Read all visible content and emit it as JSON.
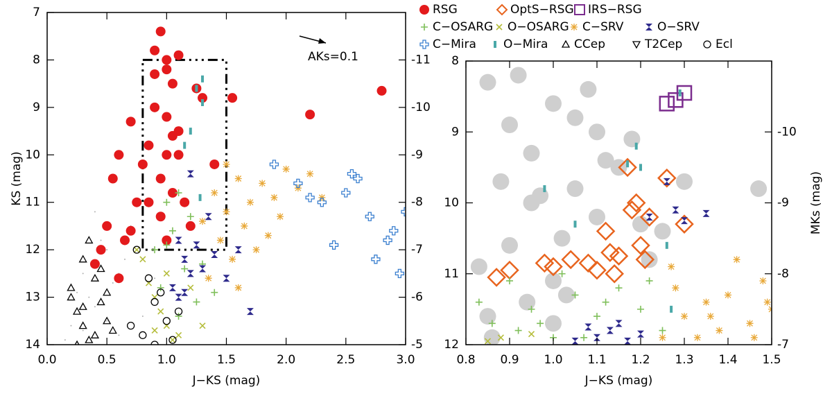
{
  "chart_data": [
    {
      "type": "scatter",
      "xlabel": "J−KS (mag)",
      "ylabel": "KS (mag)",
      "annotation": "AKs=0.1",
      "xlim": [
        0,
        3
      ],
      "ylim": [
        14,
        7
      ],
      "y2lim": [
        -5,
        -12
      ],
      "xticks": [
        {
          "value": 0,
          "label": "0.0"
        },
        {
          "value": 0.5,
          "label": "0.5"
        },
        {
          "value": 1,
          "label": "1.0"
        },
        {
          "value": 1.5,
          "label": "1.5"
        },
        {
          "value": 2,
          "label": "2.0"
        },
        {
          "value": 2.5,
          "label": "2.5"
        },
        {
          "value": 3,
          "label": "3.0"
        }
      ],
      "yticks": [
        7,
        8,
        9,
        10,
        11,
        12,
        13,
        14
      ],
      "y2ticks": [
        -11,
        -10,
        -9,
        -8,
        -7,
        -6,
        -5
      ],
      "box": {
        "x": [
          0.8,
          1.5
        ],
        "y": [
          8,
          12
        ]
      },
      "series": [
        {
          "marker": "dot",
          "color": "#b0b0b0",
          "x": [
            0.3,
            0.4,
            0.5,
            0.6,
            0.2,
            0.7,
            0.45,
            0.35,
            0.55,
            0.8,
            0.25,
            0.65,
            0.15,
            0.5,
            0.9,
            0.4,
            0.3,
            0.6
          ],
          "values": [
            12.5,
            13.2,
            12.0,
            13.8,
            13.6,
            11.5,
            11.8,
            13.0,
            12.7,
            13.4,
            12.9,
            12.2,
            13.9,
            13.5,
            12.6,
            11.2,
            13.7,
            12.5
          ]
        },
        {
          "marker": "olive-x",
          "color": "#b5bd3c",
          "x": [
            0.8,
            0.9,
            1.0,
            1.1,
            0.85,
            0.95,
            1.05,
            1.2,
            0.75,
            1.3,
            1.0,
            0.9
          ],
          "values": [
            12.2,
            13.0,
            13.6,
            13.8,
            12.7,
            13.3,
            13.9,
            12.8,
            12.0,
            13.6,
            12.5,
            13.7
          ]
        },
        {
          "marker": "asterisk",
          "color": "#e8a838",
          "x": [
            1.4,
            1.5,
            1.6,
            1.7,
            1.8,
            1.9,
            2.0,
            2.1,
            1.45,
            1.55,
            1.65,
            1.75,
            2.2,
            1.3,
            1.85,
            1.95,
            1.35,
            2.3,
            1.6,
            1.5
          ],
          "values": [
            10.8,
            11.2,
            10.5,
            11.0,
            10.6,
            10.9,
            10.3,
            10.7,
            11.8,
            12.2,
            11.5,
            12.0,
            10.4,
            11.4,
            11.7,
            11.3,
            12.6,
            10.9,
            12.8,
            10.2
          ]
        },
        {
          "marker": "cross",
          "color": "#3a7fcf",
          "x": [
            1.9,
            2.1,
            2.3,
            2.5,
            2.7,
            2.9,
            3.0,
            2.6,
            2.4,
            2.2,
            2.75,
            2.85,
            2.95,
            2.55
          ],
          "values": [
            10.2,
            10.6,
            11.0,
            10.8,
            11.3,
            11.6,
            11.2,
            10.5,
            11.9,
            10.9,
            12.2,
            11.8,
            12.5,
            10.4
          ]
        },
        {
          "marker": "circle",
          "color": "#e31a1c",
          "x": [
            0.95,
            1.0,
            1.05,
            0.9,
            1.1,
            1.0,
            0.95,
            1.15,
            1.2,
            0.85,
            1.0,
            1.05,
            0.9,
            1.1,
            0.8,
            0.75,
            0.7,
            0.6,
            0.55,
            0.65,
            0.5,
            0.45,
            0.4,
            0.6,
            1.25,
            1.3,
            2.8,
            2.2,
            1.55,
            1.4,
            0.7,
            1.0,
            1.1,
            0.95,
            0.85,
            1.05,
            0.9,
            1.0
          ],
          "values": [
            7.4,
            8.0,
            8.5,
            9.0,
            9.5,
            10.0,
            10.5,
            11.0,
            11.5,
            9.8,
            11.8,
            10.8,
            8.3,
            7.9,
            10.2,
            11.0,
            11.6,
            10.0,
            10.5,
            11.8,
            11.5,
            12.0,
            12.3,
            12.6,
            8.6,
            8.8,
            8.65,
            9.15,
            8.8,
            10.2,
            9.3,
            9.2,
            10.0,
            11.3,
            11.0,
            9.6,
            7.8,
            8.2
          ]
        },
        {
          "marker": "plus",
          "color": "#7fbf5a",
          "x": [
            1.0,
            1.1,
            1.2,
            0.9,
            1.05,
            1.15,
            0.95,
            1.3,
            1.25,
            1.4,
            1.0,
            1.1
          ],
          "values": [
            11.0,
            10.8,
            11.3,
            12.0,
            11.6,
            12.4,
            12.8,
            12.3,
            13.1,
            12.9,
            11.9,
            13.4
          ]
        },
        {
          "marker": "bowtie",
          "color": "#2e2a8c",
          "x": [
            1.1,
            1.15,
            1.2,
            1.25,
            1.05,
            1.1,
            1.3,
            1.4,
            1.5,
            1.6,
            1.7,
            1.35,
            1.2,
            1.15
          ],
          "values": [
            11.8,
            12.2,
            12.5,
            11.9,
            12.8,
            13.0,
            12.4,
            12.1,
            12.6,
            12.0,
            13.3,
            11.3,
            10.4,
            12.9
          ]
        },
        {
          "marker": "bar",
          "color": "#4aa8a8",
          "x": [
            1.25,
            1.3,
            1.2,
            1.15,
            1.3,
            1.28
          ],
          "values": [
            8.6,
            8.9,
            9.5,
            9.8,
            8.4,
            10.9
          ]
        },
        {
          "marker": "triangle",
          "color": "#000000",
          "x": [
            0.2,
            0.25,
            0.3,
            0.35,
            0.4,
            0.45,
            0.5,
            0.3,
            0.4,
            0.2,
            0.35,
            0.5,
            0.25,
            0.45,
            0.55,
            0.3
          ],
          "values": [
            12.8,
            13.3,
            13.6,
            13.9,
            12.6,
            13.1,
            13.5,
            12.2,
            13.8,
            13.0,
            11.8,
            12.9,
            14.0,
            12.4,
            13.7,
            13.2
          ]
        },
        {
          "marker": "ring",
          "color": "#000000",
          "x": [
            0.75,
            0.85,
            0.9,
            1.0,
            0.8,
            0.95,
            1.1,
            0.7,
            0.9,
            1.05
          ],
          "values": [
            12.0,
            12.6,
            13.1,
            13.5,
            13.8,
            12.9,
            13.3,
            13.6,
            14.0,
            13.9
          ]
        }
      ]
    },
    {
      "type": "scatter",
      "xlabel": "J−KS (mag)",
      "y2label": "MKs (mag)",
      "xlim": [
        0.8,
        1.5
      ],
      "ylim": [
        12,
        8
      ],
      "y2lim": [
        -7,
        -11
      ],
      "xticks": [
        {
          "value": 0.8,
          "label": "0.8"
        },
        {
          "value": 0.9,
          "label": "0.9"
        },
        {
          "value": 1,
          "label": "1.0"
        },
        {
          "value": 1.1,
          "label": "1.1"
        },
        {
          "value": 1.2,
          "label": "1.2"
        },
        {
          "value": 1.3,
          "label": "1.3"
        },
        {
          "value": 1.4,
          "label": "1.4"
        },
        {
          "value": 1.5,
          "label": "1.5"
        }
      ],
      "yticks": [
        8,
        9,
        10,
        11,
        12
      ],
      "y2ticks": [
        -10,
        -9,
        -8,
        -7
      ],
      "series": [
        {
          "marker": "bigdot",
          "color": "#cfcfcf",
          "x": [
            0.85,
            0.9,
            0.95,
            1.0,
            1.05,
            1.1,
            0.9,
            1.0,
            0.85,
            0.95,
            1.05,
            1.1,
            1.15,
            1.2,
            1.25,
            1.0,
            0.88,
            0.92,
            0.97,
            1.02,
            1.08,
            1.12,
            0.83,
            1.18,
            1.3,
            1.47,
            1.22,
            0.86,
            0.94,
            1.03
          ],
          "values": [
            8.3,
            8.9,
            9.3,
            8.6,
            9.8,
            10.2,
            10.6,
            11.1,
            11.6,
            10.0,
            8.8,
            9.0,
            9.5,
            10.3,
            10.4,
            11.7,
            9.7,
            8.2,
            9.9,
            10.5,
            8.4,
            9.4,
            10.9,
            9.1,
            9.7,
            9.8,
            10.8,
            11.9,
            11.4,
            11.3
          ]
        },
        {
          "name": "RSG",
          "marker": "circle",
          "color": "#e31a1c",
          "x": [],
          "values": []
        },
        {
          "name": "OptS−RSG",
          "marker": "diamond",
          "color": "#e8641e",
          "x": [
            0.87,
            0.9,
            0.98,
            1.0,
            1.04,
            1.08,
            1.1,
            1.12,
            1.13,
            1.15,
            1.17,
            1.18,
            1.2,
            1.21,
            1.22,
            1.26,
            1.3,
            1.14,
            1.19
          ],
          "values": [
            11.05,
            10.95,
            10.85,
            10.9,
            10.8,
            10.85,
            10.95,
            10.4,
            10.7,
            10.75,
            9.5,
            10.1,
            10.6,
            10.8,
            10.2,
            9.65,
            10.3,
            11.0,
            10.0
          ]
        },
        {
          "name": "IRS−RSG",
          "marker": "square",
          "color": "#7b2d8e",
          "x": [
            1.26,
            1.28,
            1.3
          ],
          "values": [
            8.6,
            8.55,
            8.45
          ]
        },
        {
          "name": "C−OSARG",
          "marker": "plus",
          "color": "#7fbf5a",
          "x": [
            0.83,
            0.86,
            0.9,
            0.95,
            1.0,
            1.05,
            1.1,
            1.15,
            1.2,
            1.25,
            0.92,
            1.02,
            1.12,
            1.22,
            0.97,
            1.07
          ],
          "values": [
            11.4,
            11.7,
            11.1,
            11.5,
            11.9,
            11.3,
            11.6,
            11.2,
            11.5,
            11.8,
            11.8,
            11.0,
            11.4,
            11.1,
            11.7,
            11.9
          ]
        },
        {
          "name": "O−OSARG",
          "marker": "olive-x",
          "color": "#b5bd3c",
          "x": [
            0.85,
            0.88,
            0.95
          ],
          "values": [
            11.95,
            11.9,
            11.85
          ]
        },
        {
          "name": "C−SRV",
          "marker": "asterisk",
          "color": "#e8a838",
          "x": [
            1.25,
            1.3,
            1.35,
            1.4,
            1.45,
            1.5,
            1.28,
            1.38,
            1.48,
            1.42,
            1.33,
            1.46,
            1.36,
            1.49,
            1.27
          ],
          "values": [
            11.9,
            11.6,
            11.4,
            11.3,
            11.7,
            11.5,
            11.2,
            11.8,
            11.1,
            10.8,
            11.9,
            11.9,
            11.6,
            11.4,
            10.9
          ]
        },
        {
          "name": "O−SRV",
          "marker": "bowtie",
          "color": "#2e2a8c",
          "x": [
            1.1,
            1.13,
            1.17,
            1.2,
            1.15,
            1.26,
            1.28,
            1.3,
            1.35,
            1.22,
            1.05,
            1.08
          ],
          "values": [
            11.9,
            11.8,
            11.95,
            11.85,
            11.7,
            9.7,
            10.1,
            10.25,
            10.15,
            10.2,
            11.95,
            11.75
          ]
        },
        {
          "name": "C−Mira",
          "marker": "cross",
          "color": "#3a7fcf",
          "x": [],
          "values": []
        },
        {
          "name": "O−Mira",
          "marker": "bar",
          "color": "#4aa8a8",
          "x": [
            1.05,
            1.19,
            1.2,
            1.17,
            1.26,
            1.29,
            0.98,
            1.27
          ],
          "values": [
            10.3,
            9.2,
            9.5,
            9.45,
            10.6,
            8.45,
            9.8,
            11.5
          ]
        },
        {
          "name": "CCep",
          "marker": "triangle",
          "color": "#000000",
          "x": [],
          "values": []
        },
        {
          "name": "T2Cep",
          "marker": "itriangle",
          "color": "#000000",
          "x": [],
          "values": []
        },
        {
          "name": "Ecl",
          "marker": "ring",
          "color": "#000000",
          "x": [],
          "values": []
        }
      ]
    }
  ]
}
